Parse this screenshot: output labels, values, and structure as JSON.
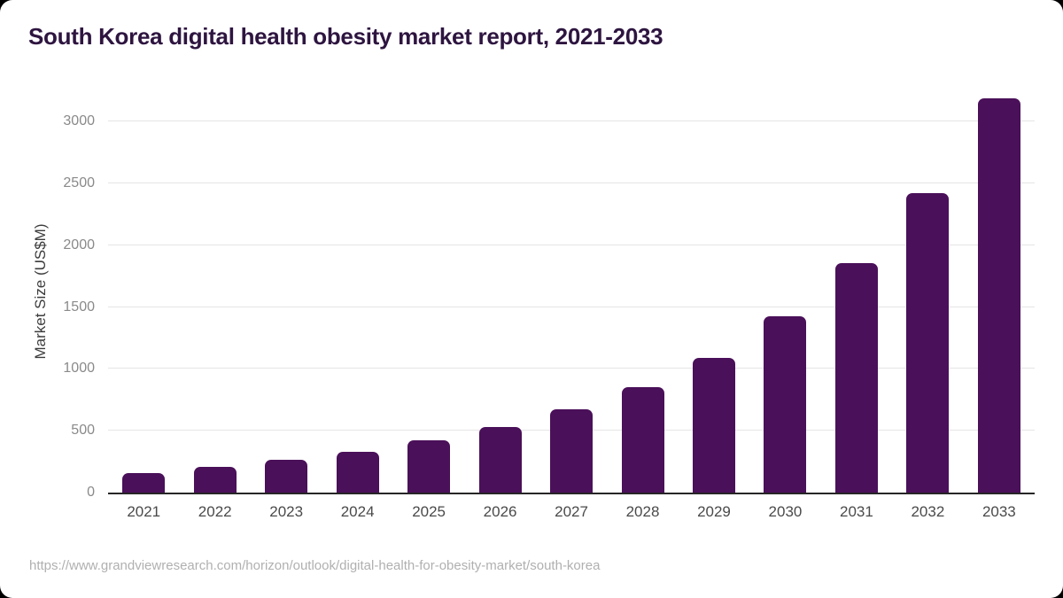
{
  "header": {
    "title": "South Korea digital health obesity market report, 2021-2033"
  },
  "footer": {
    "source_url": "https://www.grandviewresearch.com/horizon/outlook/digital-health-for-obesity-market/south-korea"
  },
  "colors": {
    "page_bg": "#000000",
    "canvas_bg": "#ffffff",
    "bar": "#4a1059",
    "title_text": "#2e1540",
    "axis_line": "#262626",
    "gridline": "#e5e5e5",
    "y_tick_text": "#8a8a8a",
    "x_tick_text": "#4a4a4a",
    "footer_text": "#b0b0b0"
  },
  "chart_data": {
    "type": "bar",
    "title": "South Korea digital health obesity market report, 2021-2033",
    "categories": [
      "2021",
      "2022",
      "2023",
      "2024",
      "2025",
      "2026",
      "2027",
      "2028",
      "2029",
      "2030",
      "2031",
      "2032",
      "2033"
    ],
    "values": [
      160,
      205,
      263,
      328,
      422,
      532,
      676,
      856,
      1092,
      1424,
      1856,
      2424,
      3190
    ],
    "xlabel": "",
    "ylabel": "Market Size (US$M)",
    "ylim": [
      0,
      3268
    ],
    "yticks": [
      0,
      500,
      1000,
      1500,
      2000,
      2500,
      3000
    ],
    "grid": true,
    "legend_position": "none",
    "bar_color": "#4a1059"
  }
}
